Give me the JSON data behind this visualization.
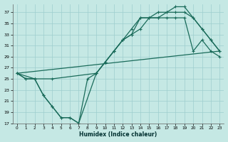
{
  "xlabel": "Humidex (Indice chaleur)",
  "bg_color": "#c5e8e4",
  "grid_color": "#9ecece",
  "line_color": "#1a6b5a",
  "xlim": [
    -0.5,
    23.5
  ],
  "ylim": [
    17,
    38.5
  ],
  "xticks": [
    0,
    1,
    2,
    3,
    4,
    5,
    6,
    7,
    8,
    9,
    10,
    11,
    12,
    13,
    14,
    15,
    16,
    17,
    18,
    19,
    20,
    21,
    22,
    23
  ],
  "yticks": [
    17,
    19,
    21,
    23,
    25,
    27,
    29,
    31,
    33,
    35,
    37
  ],
  "series1_x": [
    0,
    23
  ],
  "series1_y": [
    26,
    30
  ],
  "series2_x": [
    0,
    1,
    2,
    3,
    4,
    5,
    6,
    7,
    8,
    9,
    10,
    11,
    12,
    13,
    14,
    15,
    16,
    17,
    18,
    19,
    20,
    21,
    22,
    23
  ],
  "series2_y": [
    26,
    25,
    25,
    22,
    20,
    18,
    18,
    17,
    25,
    26,
    28,
    30,
    32,
    33,
    34,
    36,
    36,
    36,
    36,
    36,
    30,
    32,
    30,
    29
  ],
  "series3_x": [
    0,
    2,
    4,
    9,
    10,
    11,
    12,
    13,
    14,
    15,
    16,
    17,
    18,
    19,
    20,
    21,
    22,
    23
  ],
  "series3_y": [
    26,
    25,
    25,
    26,
    28,
    30,
    32,
    33,
    36,
    36,
    37,
    37,
    38,
    38,
    36,
    34,
    32,
    30
  ],
  "series4_x": [
    0,
    1,
    2,
    3,
    4,
    5,
    6,
    7,
    9,
    10,
    11,
    12,
    13,
    14,
    15,
    16,
    17,
    18,
    19,
    20,
    21,
    22,
    23
  ],
  "series4_y": [
    26,
    25,
    25,
    22,
    20,
    18,
    18,
    17,
    26,
    28,
    30,
    32,
    34,
    36,
    36,
    36,
    37,
    37,
    37,
    36,
    34,
    32,
    30
  ]
}
